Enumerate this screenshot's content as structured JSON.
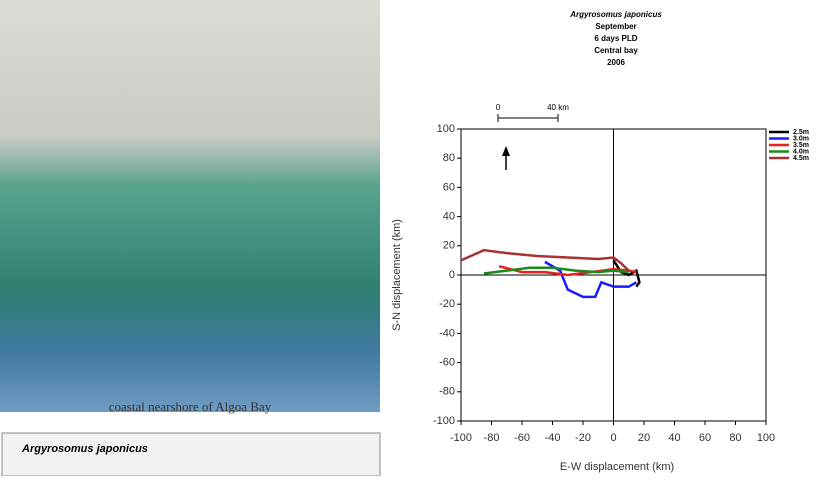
{
  "photo_caption": "coastal nearshore of Algoa Bay",
  "panel_title": "Argyrosomus japonicus",
  "chart_data": {
    "type": "line",
    "title": "Argyrosomus japonicus",
    "subtitle": [
      "September",
      "6 days PLD",
      "Central bay",
      "2006"
    ],
    "scale_bar": [
      "0",
      "40 km"
    ],
    "xlabel": "E-W displacement (km)",
    "ylabel": "S-N displacement (km)",
    "xlim": [
      -100,
      100
    ],
    "ylim": [
      -100,
      100
    ],
    "xticks": [
      -100,
      -80,
      -60,
      -40,
      -20,
      0,
      20,
      40,
      60,
      80,
      100
    ],
    "yticks": [
      -100,
      -80,
      -60,
      -40,
      -20,
      0,
      20,
      40,
      60,
      80,
      100
    ],
    "legend": "right",
    "series": [
      {
        "name": "2.5m",
        "color": "#000000",
        "x": [
          0,
          5,
          10,
          15,
          17,
          15
        ],
        "values": [
          10,
          2,
          0,
          3,
          -5,
          -8
        ]
      },
      {
        "name": "3.0m",
        "color": "#1a1aff",
        "x": [
          -45,
          -35,
          -30,
          -20,
          -12,
          -8,
          0,
          10,
          15
        ],
        "values": [
          9,
          3,
          -10,
          -15,
          -15,
          -5,
          -8,
          -8,
          -5
        ]
      },
      {
        "name": "3.5m",
        "color": "#e82020",
        "x": [
          -75,
          -60,
          -45,
          -30,
          -15,
          0,
          10,
          15
        ],
        "values": [
          6,
          2,
          2,
          0,
          2,
          4,
          3,
          2
        ]
      },
      {
        "name": "4.0m",
        "color": "#1a8a1a",
        "x": [
          -85,
          -70,
          -55,
          -40,
          -25,
          -10,
          0,
          10
        ],
        "values": [
          1,
          3,
          5,
          5,
          3,
          2,
          3,
          2
        ]
      },
      {
        "name": "4.5m",
        "color": "#a83232",
        "x": [
          -100,
          -85,
          -70,
          -50,
          -30,
          -10,
          0,
          5,
          10
        ],
        "values": [
          10,
          17,
          15,
          13,
          12,
          11,
          12,
          8,
          3
        ]
      }
    ]
  }
}
